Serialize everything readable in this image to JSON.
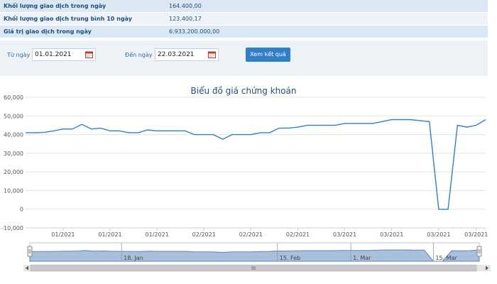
{
  "stats": {
    "rows": [
      {
        "label": "Khối lượng giao dịch trong ngày",
        "value": "164.400,00"
      },
      {
        "label": "Khối lượng giao dịch trung bình 10 ngày",
        "value": "123.400,17"
      },
      {
        "label": "Giá trị giao dịch trong ngày",
        "value": "6.933.200.000,00"
      }
    ]
  },
  "filter": {
    "from_label": "Từ ngày",
    "from_value": "01.01.2021",
    "to_label": "Đến ngày",
    "to_value": "22.03.2021",
    "button": "Xem kết quả",
    "calendar_icon": "calendar-icon"
  },
  "chart_data": {
    "type": "line",
    "title": "Biểu đồ giá chứng khoán",
    "ylim": [
      -10000,
      60000
    ],
    "y_ticks": [
      -10000,
      0,
      10000,
      20000,
      30000,
      40000,
      50000,
      60000
    ],
    "y_tick_labels": [
      "-10,000",
      "0",
      "10,000",
      "20,000",
      "30,000",
      "40,000",
      "50,000",
      "60,000"
    ],
    "x_tick_labels": [
      "01/2021",
      "01/2021",
      "01/2021",
      "02/2021",
      "02/2021",
      "02/2021",
      "03/2021",
      "03/2021",
      "03/2021",
      "03/2021"
    ],
    "x_tick_indices": [
      4,
      9,
      14,
      19,
      24,
      29,
      34,
      39,
      44,
      48
    ],
    "values": [
      41000,
      41000,
      41200,
      42000,
      43000,
      43000,
      45500,
      43000,
      43500,
      42000,
      42000,
      41000,
      41000,
      42500,
      42000,
      42000,
      42000,
      42000,
      40000,
      40000,
      40000,
      37500,
      40000,
      40000,
      40000,
      41000,
      41000,
      43500,
      43500,
      44000,
      45000,
      45000,
      45000,
      45000,
      46000,
      46000,
      46000,
      46000,
      47000,
      48000,
      48000,
      48000,
      47500,
      47000,
      0,
      0,
      45000,
      44000,
      45000,
      48000
    ],
    "navigator_labels": [
      "18. Jan",
      "15. Feb",
      "1. Mar",
      "15. Mar"
    ],
    "navigator_label_indices": [
      10,
      27,
      35,
      44
    ],
    "line_color": "#2e7fd1",
    "grid": true
  }
}
